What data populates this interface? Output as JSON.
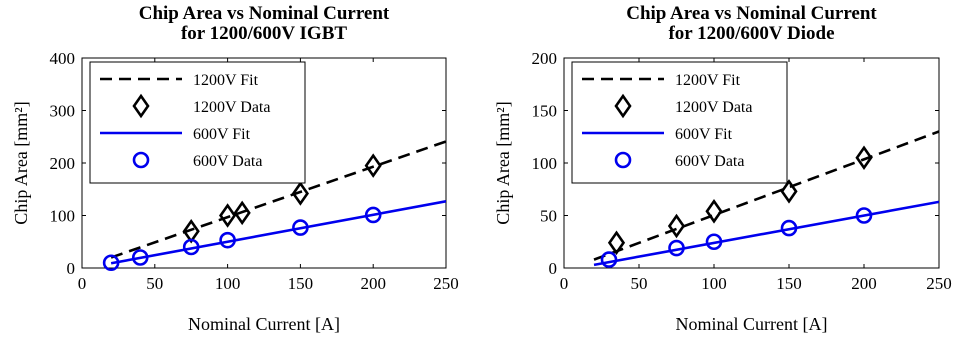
{
  "colors": {
    "fit1200": "#000000",
    "fit600": "#0000ee",
    "data1200": "#000000",
    "data600": "#0000ee"
  },
  "chart_data": [
    {
      "type": "line",
      "title": [
        "Chip Area vs Nominal Current",
        "for 1200/600V IGBT"
      ],
      "xlabel": "Nominal Current [A]",
      "ylabel": "Chip Area [mm²]",
      "xlim": [
        0,
        250
      ],
      "ylim": [
        0,
        400
      ],
      "xticks": [
        0,
        50,
        100,
        150,
        200,
        250
      ],
      "yticks": [
        0,
        100,
        200,
        300,
        400
      ],
      "grid": false,
      "legend_position": "top-left",
      "series": [
        {
          "name": "1200V Fit",
          "kind": "line",
          "style": "dashed",
          "color": "#000000",
          "x": [
            20,
            250
          ],
          "y": [
            20,
            241
          ]
        },
        {
          "name": "1200V Data",
          "kind": "marker",
          "marker": "diamond",
          "color": "#000000",
          "x": [
            75,
            100,
            110,
            150,
            200
          ],
          "y": [
            70,
            100,
            105,
            142,
            195
          ]
        },
        {
          "name": "600V Fit",
          "kind": "line",
          "style": "solid",
          "color": "#0000ee",
          "x": [
            20,
            250
          ],
          "y": [
            9,
            127
          ]
        },
        {
          "name": "600V Data",
          "kind": "marker",
          "marker": "circle",
          "color": "#0000ee",
          "x": [
            20,
            40,
            75,
            100,
            150,
            200
          ],
          "y": [
            10,
            20,
            40,
            53,
            77,
            101
          ]
        }
      ]
    },
    {
      "type": "line",
      "title": [
        "Chip Area vs Nominal Current",
        "for 1200/600V Diode"
      ],
      "xlabel": "Nominal Current [A]",
      "ylabel": "Chip Area [mm²]",
      "xlim": [
        0,
        250
      ],
      "ylim": [
        0,
        200
      ],
      "xticks": [
        0,
        50,
        100,
        150,
        200,
        250
      ],
      "yticks": [
        0,
        50,
        100,
        150,
        200
      ],
      "grid": false,
      "legend_position": "top-left",
      "series": [
        {
          "name": "1200V Fit",
          "kind": "line",
          "style": "dashed",
          "color": "#000000",
          "x": [
            20,
            250
          ],
          "y": [
            8,
            130
          ]
        },
        {
          "name": "1200V Data",
          "kind": "marker",
          "marker": "diamond",
          "color": "#000000",
          "x": [
            35,
            75,
            100,
            150,
            200
          ],
          "y": [
            24,
            40,
            54,
            73,
            105
          ]
        },
        {
          "name": "600V Fit",
          "kind": "line",
          "style": "solid",
          "color": "#0000ee",
          "x": [
            20,
            250
          ],
          "y": [
            3,
            63
          ]
        },
        {
          "name": "600V Data",
          "kind": "marker",
          "marker": "circle",
          "color": "#0000ee",
          "x": [
            30,
            75,
            100,
            150,
            200
          ],
          "y": [
            8,
            19,
            25,
            38,
            50
          ]
        }
      ]
    }
  ]
}
